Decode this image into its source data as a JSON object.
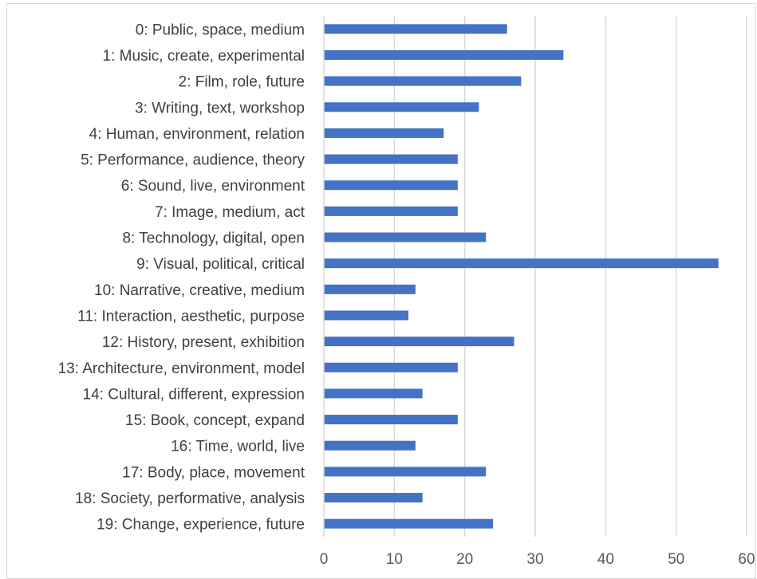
{
  "chart_data": {
    "type": "bar",
    "orientation": "horizontal",
    "title": "",
    "xlabel": "",
    "ylabel": "",
    "categories": [
      "0: Public, space, medium",
      "1: Music, create, experimental",
      "2: Film, role, future",
      "3: Writing, text, workshop",
      "4: Human, environment, relation",
      "5: Performance, audience, theory",
      "6: Sound, live, environment",
      "7: Image, medium, act",
      "8: Technology, digital, open",
      "9: Visual, political, critical",
      "10: Narrative, creative, medium",
      "11: Interaction, aesthetic, purpose",
      "12: History, present, exhibition",
      "13: Architecture, environment, model",
      "14: Cultural, different, expression",
      "15: Book, concept, expand",
      "16: Time, world, live",
      "17: Body, place, movement",
      "18: Society, performative, analysis",
      "19: Change, experience, future"
    ],
    "values": [
      26,
      34,
      28,
      22,
      17,
      19,
      19,
      19,
      23,
      56,
      13,
      12,
      27,
      19,
      14,
      19,
      13,
      23,
      14,
      24
    ],
    "xlim": [
      0,
      60
    ],
    "xticks": [
      "0",
      "10",
      "20",
      "30",
      "40",
      "50",
      "60"
    ],
    "grid": "vertical",
    "legend": "none",
    "bar_color": "#4472c4",
    "grid_color": "#d9d9d9"
  }
}
